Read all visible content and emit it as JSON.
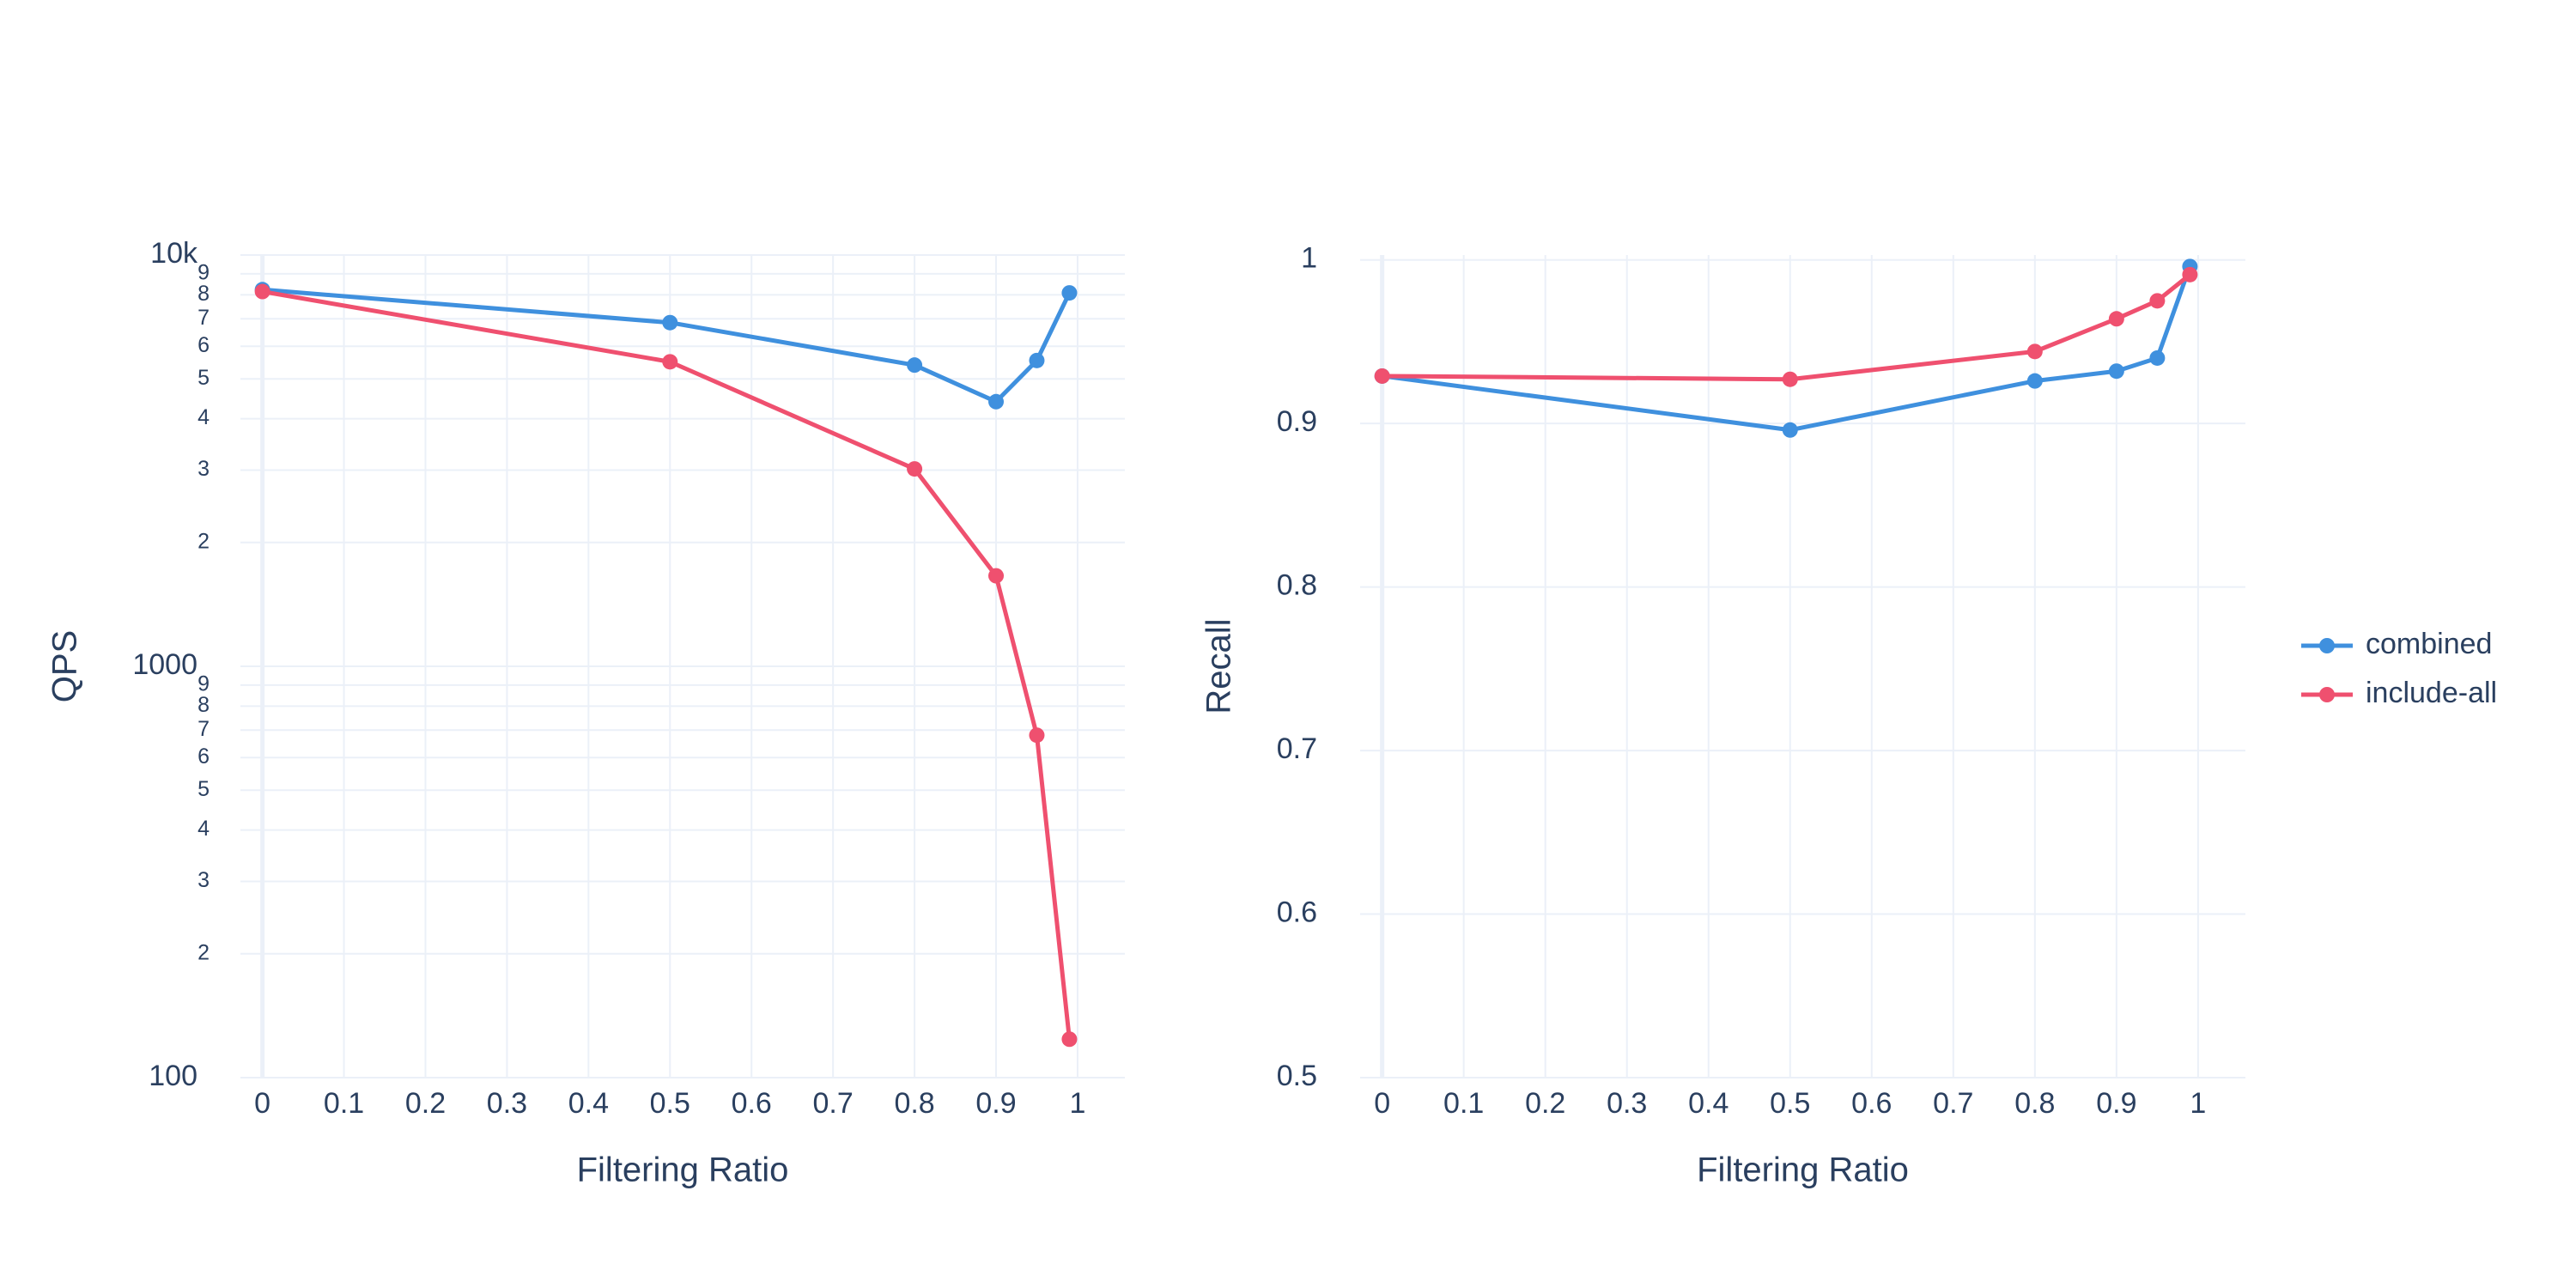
{
  "chart_data": [
    {
      "type": "line",
      "xlabel": "Filtering Ratio",
      "ylabel": "QPS",
      "ylog": true,
      "grid": true,
      "x": [
        0,
        0.5,
        0.8,
        0.9,
        0.95,
        0.99
      ],
      "xlim": [
        -0.027,
        1.058
      ],
      "xticks": [
        0,
        0.1,
        0.2,
        0.3,
        0.4,
        0.5,
        0.6,
        0.7,
        0.8,
        0.9,
        1
      ],
      "ylim": [
        100,
        10000
      ],
      "yticks": [
        100,
        {
          "value": 200,
          "label": "2"
        },
        {
          "value": 300,
          "label": "3"
        },
        {
          "value": 400,
          "label": "4"
        },
        {
          "value": 500,
          "label": "5"
        },
        {
          "value": 600,
          "label": "6"
        },
        {
          "value": 700,
          "label": "7"
        },
        {
          "value": 800,
          "label": "8"
        },
        {
          "value": 900,
          "label": "9"
        },
        1000,
        {
          "value": 2000,
          "label": "2"
        },
        {
          "value": 3000,
          "label": "3"
        },
        {
          "value": 4000,
          "label": "4"
        },
        {
          "value": 5000,
          "label": "5"
        },
        {
          "value": 6000,
          "label": "6"
        },
        {
          "value": 7000,
          "label": "7"
        },
        {
          "value": 8000,
          "label": "8"
        },
        {
          "value": 9000,
          "label": "9"
        },
        {
          "value": 10000,
          "label": "10k"
        }
      ],
      "series": [
        {
          "name": "combined",
          "color": "#3f90de",
          "values": [
            8240,
            6850,
            5400,
            4400,
            5540,
            8090
          ]
        },
        {
          "name": "include-all",
          "color": "#ef506f",
          "values": [
            8150,
            5500,
            3020,
            1660,
            680,
            124
          ]
        }
      ]
    },
    {
      "type": "line",
      "xlabel": "Filtering Ratio",
      "ylabel": "Recall",
      "ylog": false,
      "grid": true,
      "legend": "right",
      "x": [
        0,
        0.5,
        0.8,
        0.9,
        0.95,
        0.99
      ],
      "xlim": [
        -0.027,
        1.058
      ],
      "xticks": [
        0,
        0.1,
        0.2,
        0.3,
        0.4,
        0.5,
        0.6,
        0.7,
        0.8,
        0.9,
        1
      ],
      "ylim": [
        0.5,
        1.003
      ],
      "yticks": [
        0.5,
        0.6,
        0.7,
        0.8,
        0.9,
        1
      ],
      "series": [
        {
          "name": "combined",
          "color": "#3f90de",
          "values": [
            0.929,
            0.896,
            0.926,
            0.932,
            0.94,
            0.996
          ]
        },
        {
          "name": "include-all",
          "color": "#ef506f",
          "values": [
            0.929,
            0.927,
            0.944,
            0.964,
            0.975,
            0.991
          ]
        }
      ]
    }
  ]
}
